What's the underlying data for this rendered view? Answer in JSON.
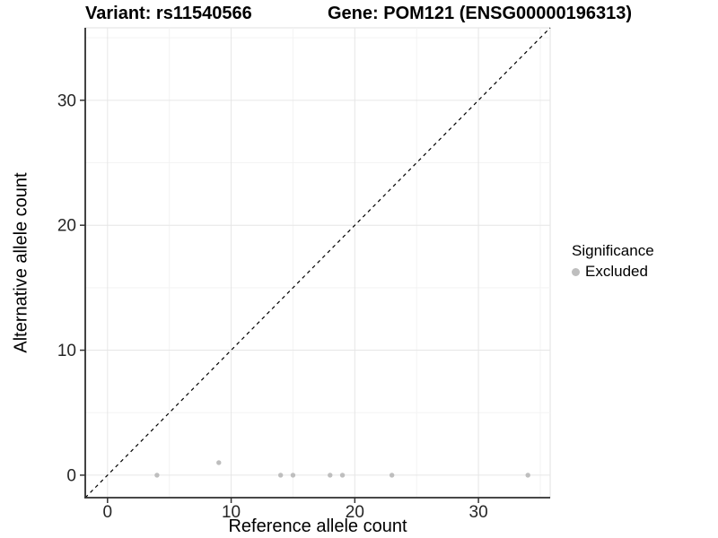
{
  "chart_data": {
    "type": "scatter",
    "title_left": "Variant: rs11540566",
    "title_right": "Gene: POM121 (ENSG00000196313)",
    "xlabel": "Reference allele count",
    "ylabel": "Alternative allele count",
    "xlim": [
      -1.8,
      35.8
    ],
    "ylim": [
      -1.8,
      35.8
    ],
    "x_ticks": [
      0,
      10,
      20,
      30
    ],
    "y_ticks": [
      0,
      10,
      20,
      30
    ],
    "x_minor_ticks": [
      5,
      15,
      25,
      35
    ],
    "y_minor_ticks": [
      5,
      15,
      25,
      35
    ],
    "grid": true,
    "identity_line": {
      "style": "dashed",
      "equation": "y = x",
      "color": "#000000"
    },
    "series": [
      {
        "name": "Excluded",
        "color": "#bebebe",
        "points": [
          [
            4,
            0
          ],
          [
            9,
            1
          ],
          [
            14,
            0
          ],
          [
            15,
            0
          ],
          [
            18,
            0
          ],
          [
            19,
            0
          ],
          [
            23,
            0
          ],
          [
            34,
            0
          ]
        ]
      }
    ],
    "legend": {
      "title": "Significance",
      "position": "right",
      "items": [
        {
          "label": "Excluded",
          "color": "#bebebe"
        }
      ]
    }
  },
  "colors": {
    "background": "#ffffff",
    "grid_major": "#e6e6e6",
    "grid_minor": "#f3f3f3",
    "panel_border": "#e2e2e2",
    "axis_line": "#2e2e2e",
    "tick_mark": "#333333",
    "tick_text": "#262626",
    "point": "#bebebe",
    "dashed_line": "#000000"
  }
}
